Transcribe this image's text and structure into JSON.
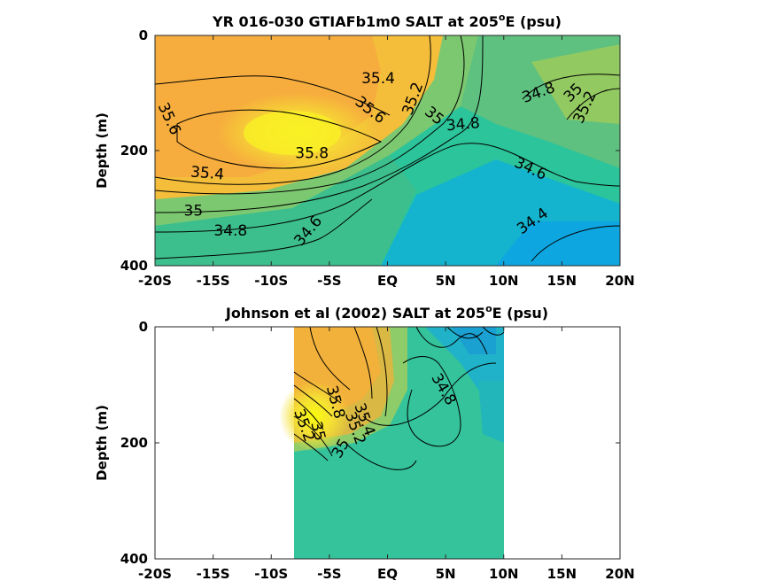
{
  "chart_data": [
    {
      "type": "heatmap",
      "title_main": "YR 016-030 GTIAFb1m0 SALT at 205",
      "title_sup": "o",
      "title_tail": "E (psu)",
      "ylabel": "Depth (m)",
      "xlabel": "",
      "x_ticks": [
        "-20S",
        "-15S",
        "-10S",
        "-5S",
        "EQ",
        "5N",
        "10N",
        "15N",
        "20N"
      ],
      "x_values": [
        -20,
        -15,
        -10,
        -5,
        0,
        5,
        10,
        15,
        20
      ],
      "y_ticks": [
        "0",
        "200",
        "400"
      ],
      "y_values": [
        0,
        200,
        400
      ],
      "xlim": [
        -20,
        20
      ],
      "ylim": [
        400,
        0
      ],
      "colormap": "parula",
      "contour_levels": [
        34.4,
        34.6,
        34.8,
        35,
        35.2,
        35.4,
        35.6,
        35.8
      ],
      "contour_labels": [
        {
          "text": "35.4",
          "x": -0.8,
          "y": 75,
          "rot": 0
        },
        {
          "text": "35.6",
          "x": -1.5,
          "y": 130,
          "rot": 38
        },
        {
          "text": "35.2",
          "x": 2.2,
          "y": 110,
          "rot": -70
        },
        {
          "text": "35",
          "x": 4,
          "y": 140,
          "rot": 40
        },
        {
          "text": "34.8",
          "x": 6.5,
          "y": 155,
          "rot": -5
        },
        {
          "text": "34.8",
          "x": 13,
          "y": 100,
          "rot": -20
        },
        {
          "text": "35",
          "x": 16,
          "y": 100,
          "rot": -45
        },
        {
          "text": "35.2",
          "x": 17,
          "y": 125,
          "rot": -65
        },
        {
          "text": "35.6",
          "x": -18.8,
          "y": 145,
          "rot": 65
        },
        {
          "text": "35.8",
          "x": -6.5,
          "y": 205,
          "rot": 0
        },
        {
          "text": "35.4",
          "x": -15.5,
          "y": 240,
          "rot": 5
        },
        {
          "text": "35",
          "x": -16.7,
          "y": 305,
          "rot": 0
        },
        {
          "text": "34.8",
          "x": -13.5,
          "y": 340,
          "rot": 0
        },
        {
          "text": "34.6",
          "x": -6.8,
          "y": 340,
          "rot": -50
        },
        {
          "text": "34.6",
          "x": 12.3,
          "y": 232,
          "rot": 25
        },
        {
          "text": "34.4",
          "x": 12.5,
          "y": 323,
          "rot": -35
        }
      ]
    },
    {
      "type": "heatmap",
      "title_main": "Johnson et al (2002) SALT at 205",
      "title_sup": "o",
      "title_tail": "E (psu)",
      "ylabel": "Depth (m)",
      "xlabel": "",
      "x_ticks": [
        "-20S",
        "-15S",
        "-10S",
        "-5S",
        "EQ",
        "5N",
        "10N",
        "15N",
        "20N"
      ],
      "x_values": [
        -20,
        -15,
        -10,
        -5,
        0,
        5,
        10,
        15,
        20
      ],
      "y_ticks": [
        "0",
        "200",
        "400"
      ],
      "y_values": [
        0,
        200,
        400
      ],
      "xlim": [
        -20,
        20
      ],
      "ylim": [
        400,
        0
      ],
      "data_extent_x": [
        -8,
        10
      ],
      "colormap": "parula",
      "contour_levels": [
        34.6,
        34.8,
        35,
        35.2,
        35.4,
        35.6,
        35.8
      ],
      "contour_labels": [
        {
          "text": "34.8",
          "x": 4.8,
          "y": 108,
          "rot": 60
        },
        {
          "text": "35.4",
          "x": -2,
          "y": 160,
          "rot": 70
        },
        {
          "text": "35.2",
          "x": -2.8,
          "y": 175,
          "rot": 70
        },
        {
          "text": "35",
          "x": -4,
          "y": 210,
          "rot": -60
        },
        {
          "text": "35.8",
          "x": -4.5,
          "y": 130,
          "rot": 75
        },
        {
          "text": "35",
          "x": -6,
          "y": 180,
          "rot": 75
        },
        {
          "text": "35.2",
          "x": -7.2,
          "y": 170,
          "rot": 70
        }
      ]
    }
  ]
}
